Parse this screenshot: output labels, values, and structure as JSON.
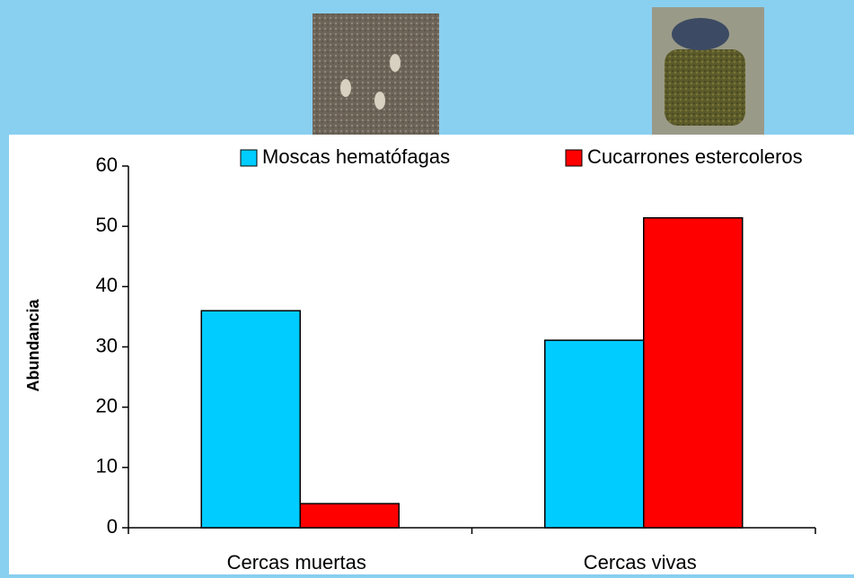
{
  "chart_data": {
    "type": "bar",
    "y_label": "Abundancia",
    "categories": [
      "Cercas muertas",
      "Cercas vivas"
    ],
    "series": [
      {
        "name": "Moscas hematófagas",
        "color": "#00ccff",
        "values": [
          36,
          31.1
        ]
      },
      {
        "name": "Cucarrones estercoleros",
        "color": "#ff0000",
        "values": [
          4,
          51.4
        ]
      }
    ],
    "ylim": [
      0,
      60
    ],
    "yticks": [
      0,
      10,
      20,
      30,
      40,
      50,
      60
    ],
    "grid": false
  }
}
